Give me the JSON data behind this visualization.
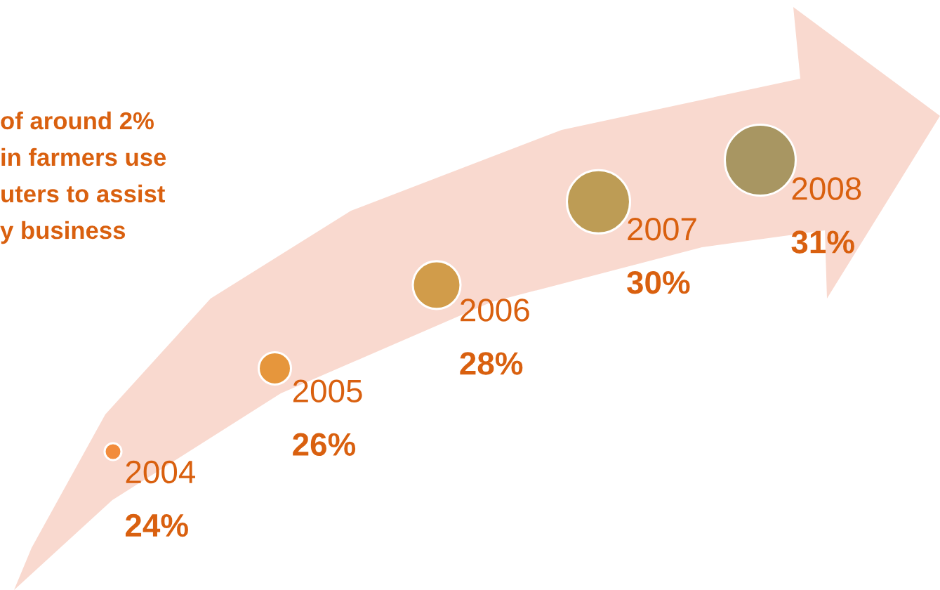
{
  "chart_data": {
    "type": "other",
    "annotations": [
      "of around 2%",
      "in farmers use",
      "uters to assist",
      "y business"
    ],
    "categories": [
      "2004",
      "2005",
      "2006",
      "2007",
      "2008"
    ],
    "values": [
      24,
      26,
      28,
      30,
      31
    ],
    "value_labels": [
      "24%",
      "26%",
      "28%",
      "30%",
      "31%"
    ],
    "colors": [
      "#f28c3c",
      "#e6963c",
      "#d19c4a",
      "#bd9c55",
      "#a89662"
    ]
  }
}
